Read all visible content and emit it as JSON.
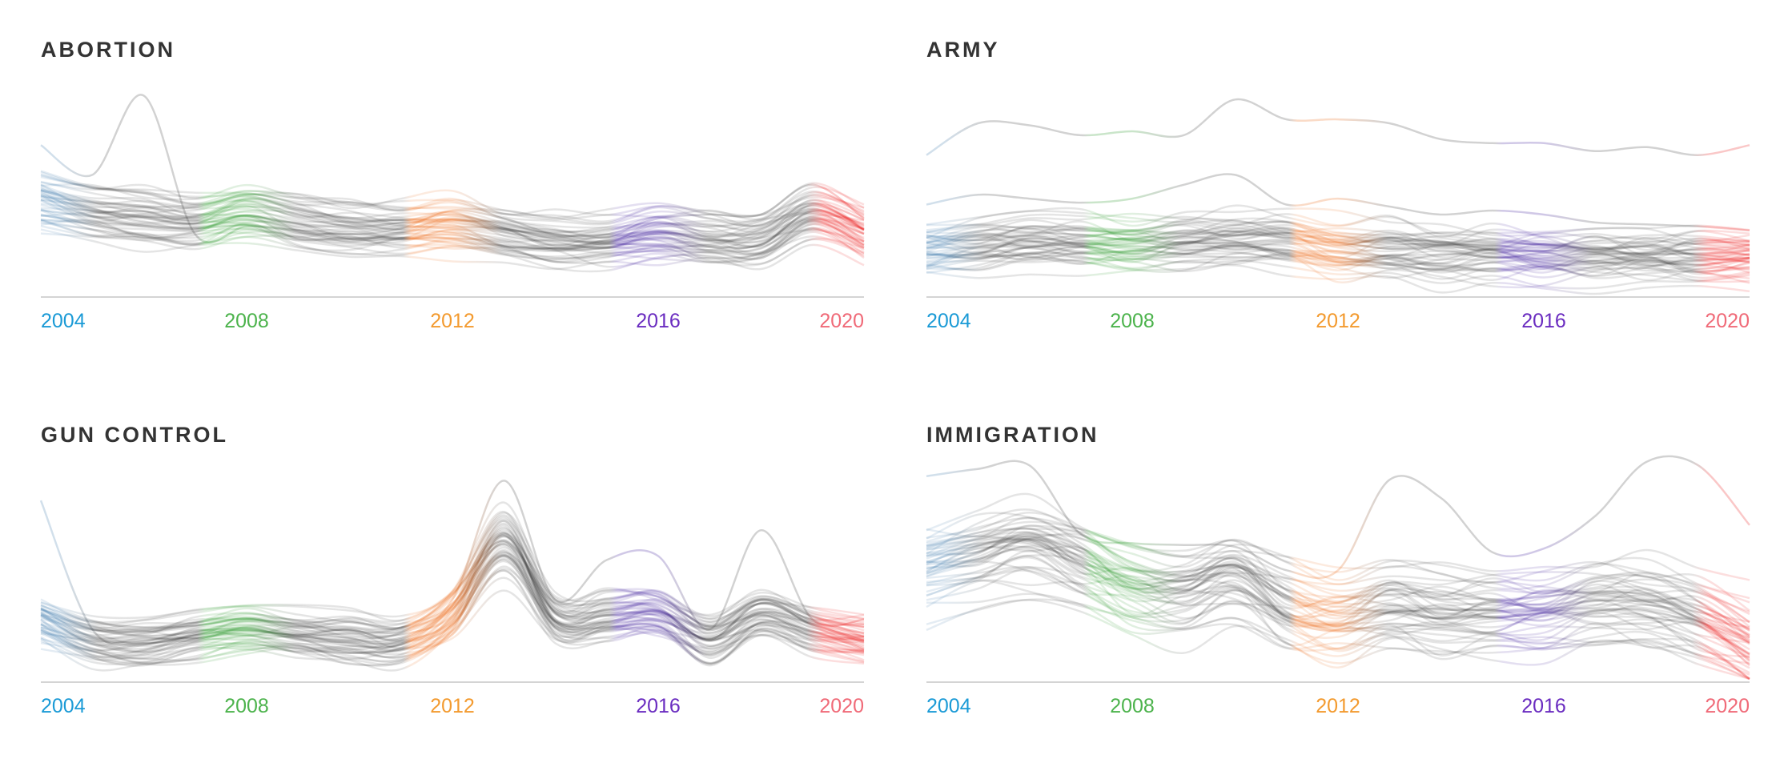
{
  "colors": {
    "y2004": "#1a9ad6",
    "y2008": "#4cb34c",
    "y2012": "#f39a2e",
    "y2016": "#6a2cc0",
    "y2020": "#f06a78",
    "line2004": "#2f6fa5",
    "line2008": "#0f8a0f",
    "line2012": "#ea5a00",
    "line2016": "#2a0690",
    "line2020": "#e80000",
    "grey": "#333333"
  },
  "chart_data": [
    {
      "type": "line",
      "title": "ABORTION",
      "x": [
        2004,
        2005,
        2006,
        2007,
        2008,
        2009,
        2010,
        2011,
        2012,
        2013,
        2014,
        2015,
        2016,
        2017,
        2018,
        2019,
        2020
      ],
      "xticks": [
        "2004",
        "2008",
        "2012",
        "2016",
        "2020"
      ],
      "ylim": [
        0,
        105
      ],
      "lines": 50,
      "median": [
        47,
        41,
        38,
        36,
        41,
        36,
        33,
        32,
        34,
        30,
        26,
        26,
        30,
        27,
        27,
        40,
        30
      ],
      "spread": 9,
      "outliers": [
        [
          75,
          60,
          100,
          30,
          34,
          32,
          30,
          33,
          42,
          38,
          30,
          30,
          38,
          40,
          40,
          55,
          38
        ]
      ]
    },
    {
      "type": "line",
      "title": "ARMY",
      "x": [
        2004,
        2005,
        2006,
        2007,
        2008,
        2009,
        2010,
        2011,
        2012,
        2013,
        2014,
        2015,
        2016,
        2017,
        2018,
        2019,
        2020
      ],
      "xticks": [
        "2004",
        "2008",
        "2012",
        "2016",
        "2020"
      ],
      "ylim": [
        0,
        105
      ],
      "lines": 50,
      "median": [
        22,
        24,
        26,
        25,
        24,
        26,
        27,
        26,
        22,
        22,
        20,
        20,
        18,
        18,
        18,
        18,
        18
      ],
      "spread": 11,
      "outliers": [
        [
          70,
          86,
          85,
          80,
          82,
          80,
          98,
          88,
          88,
          86,
          78,
          76,
          76,
          72,
          74,
          70,
          75
        ],
        [
          45,
          50,
          48,
          46,
          48,
          55,
          60,
          45,
          48,
          44,
          40,
          42,
          40,
          36,
          35,
          34,
          32
        ]
      ]
    },
    {
      "type": "line",
      "title": "GUN CONTROL",
      "x": [
        2004,
        2005,
        2006,
        2007,
        2008,
        2009,
        2010,
        2011,
        2012,
        2013,
        2014,
        2015,
        2016,
        2017,
        2018,
        2019,
        2020
      ],
      "xticks": [
        "2004",
        "2008",
        "2012",
        "2016",
        "2020"
      ],
      "ylim": [
        0,
        105
      ],
      "lines": 50,
      "median": [
        30,
        19,
        18,
        22,
        25,
        22,
        20,
        19,
        33,
        69,
        30,
        32,
        33,
        20,
        33,
        25,
        20
      ],
      "spread": 9,
      "outliers": [
        [
          90,
          25,
          18,
          22,
          25,
          22,
          25,
          20,
          40,
          100,
          40,
          60,
          62,
          25,
          75,
          30,
          30
        ]
      ]
    },
    {
      "type": "line",
      "title": "IMMIGRATION",
      "x": [
        2004,
        2005,
        2006,
        2007,
        2008,
        2009,
        2010,
        2011,
        2012,
        2013,
        2014,
        2015,
        2016,
        2017,
        2018,
        2019,
        2020
      ],
      "xticks": [
        "2004",
        "2008",
        "2012",
        "2016",
        "2020"
      ],
      "ylim": [
        0,
        115
      ],
      "lines": 50,
      "median": [
        63,
        69,
        75,
        64,
        53,
        50,
        58,
        42,
        36,
        42,
        39,
        39,
        39,
        44,
        43,
        36,
        22
      ],
      "spread": 16,
      "outliers": [
        [
          112,
          116,
          118,
          80,
          75,
          74,
          73,
          60,
          60,
          110,
          100,
          70,
          72,
          90,
          120,
          118,
          85
        ]
      ]
    }
  ]
}
